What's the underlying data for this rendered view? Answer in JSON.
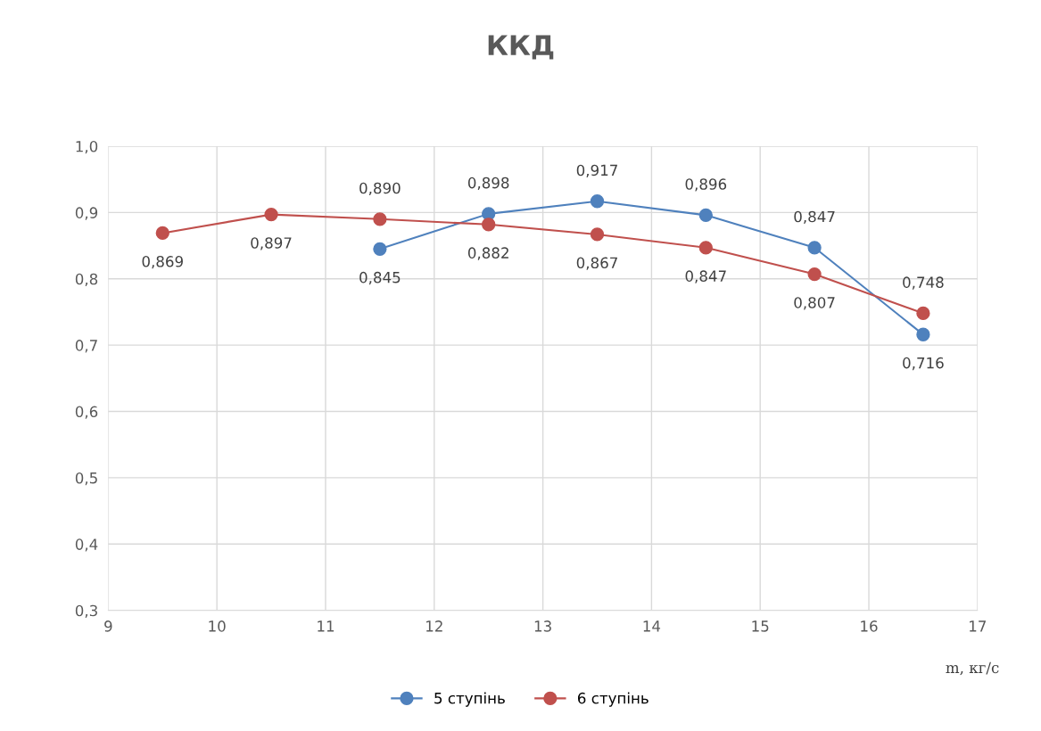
{
  "chart_data": {
    "type": "line",
    "title": "ККД",
    "xlabel": "m, кг/с",
    "xlim": [
      9,
      17
    ],
    "xticks": [
      9,
      10,
      11,
      12,
      13,
      14,
      15,
      16,
      17
    ],
    "ylim": [
      0.3,
      1.0
    ],
    "yticks": [
      {
        "value": 0.3,
        "label": "0,3"
      },
      {
        "value": 0.4,
        "label": "0,4"
      },
      {
        "value": 0.5,
        "label": "0,5"
      },
      {
        "value": 0.6,
        "label": "0,6"
      },
      {
        "value": 0.7,
        "label": "0,7"
      },
      {
        "value": 0.8,
        "label": "0,8"
      },
      {
        "value": 0.9,
        "label": "0,9"
      },
      {
        "value": 1.0,
        "label": "1,0"
      }
    ],
    "series": [
      {
        "name": "5 ступінь",
        "color": "#4f81bd",
        "x": [
          11.5,
          12.5,
          13.5,
          14.5,
          15.5,
          16.5
        ],
        "values": [
          0.845,
          0.898,
          0.917,
          0.896,
          0.847,
          0.716
        ],
        "value_labels": [
          "0,845",
          "0,898",
          "0,917",
          "0,896",
          "0,847",
          "0,716"
        ]
      },
      {
        "name": "6 ступінь",
        "color": "#c0504d",
        "x": [
          9.5,
          10.5,
          11.5,
          12.5,
          13.5,
          14.5,
          15.5,
          16.5
        ],
        "values": [
          0.869,
          0.897,
          0.89,
          0.882,
          0.867,
          0.847,
          0.807,
          0.748
        ],
        "value_labels": [
          "0,869",
          "0,897",
          "0,890",
          "0,882",
          "0,867",
          "0,847",
          "0,807",
          "0,748"
        ]
      }
    ],
    "grid": true,
    "legend": "bottom",
    "marker": "circle",
    "line_style": "solid"
  }
}
